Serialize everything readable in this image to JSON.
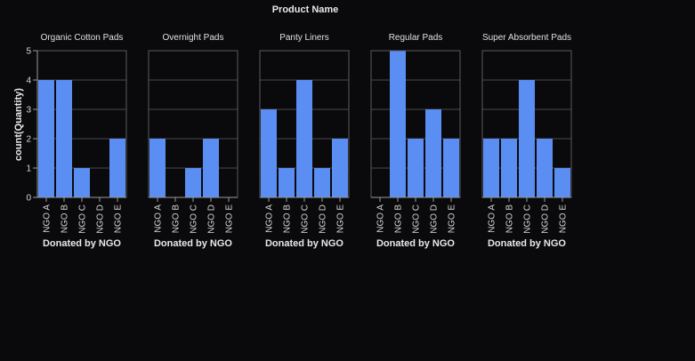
{
  "chart_data": {
    "type": "bar",
    "title": "Product Name",
    "xlabel": "Donated by NGO",
    "ylabel": "count(Quantity)",
    "ylim": [
      0,
      5
    ],
    "yticks": [
      "0",
      "1",
      "2",
      "3",
      "4",
      "5"
    ],
    "grid": true,
    "categories": [
      "NGO A",
      "NGO B",
      "NGO C",
      "NGO D",
      "NGO E"
    ],
    "bar_color": "#5b8ef2",
    "facets": [
      {
        "name": "Organic Cotton Pads",
        "values": [
          4,
          4,
          1,
          0,
          2
        ]
      },
      {
        "name": "Overnight Pads",
        "values": [
          2,
          0,
          1,
          2,
          0
        ]
      },
      {
        "name": "Panty Liners",
        "values": [
          3,
          1,
          4,
          1,
          2
        ]
      },
      {
        "name": "Regular Pads",
        "values": [
          0,
          5,
          2,
          3,
          2
        ]
      },
      {
        "name": "Super Absorbent Pads",
        "values": [
          2,
          2,
          4,
          2,
          1
        ]
      }
    ]
  }
}
